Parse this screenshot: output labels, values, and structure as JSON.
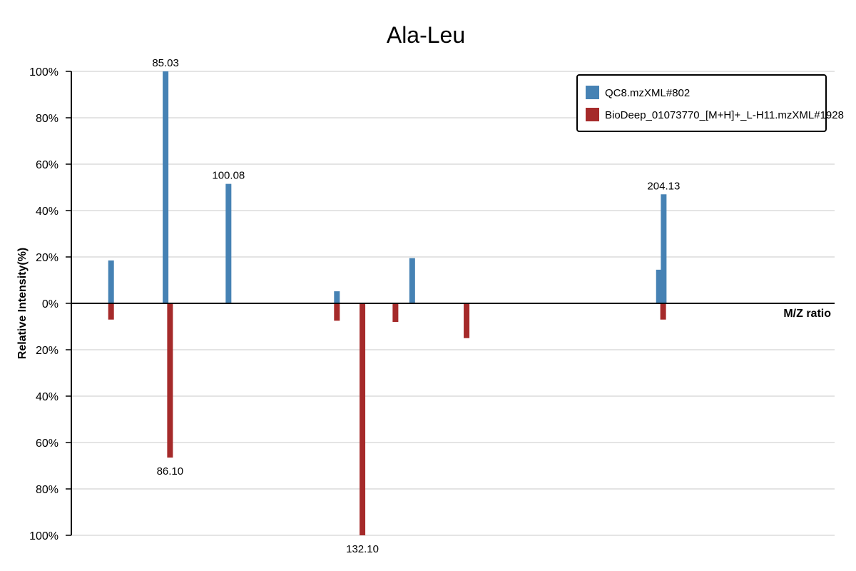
{
  "chart_data": {
    "type": "bar",
    "title": "Ala-Leu",
    "xlabel": "M/Z ratio",
    "ylabel": "Relative Intensity(%)",
    "ylim": [
      -100,
      100
    ],
    "y_ticks": [
      {
        "value": 100,
        "label": "100%"
      },
      {
        "value": 80,
        "label": "80%"
      },
      {
        "value": 60,
        "label": "60%"
      },
      {
        "value": 40,
        "label": "40%"
      },
      {
        "value": 20,
        "label": "20%"
      },
      {
        "value": 0,
        "label": "0%"
      },
      {
        "value": -20,
        "label": "20%"
      },
      {
        "value": -40,
        "label": "40%"
      },
      {
        "value": -60,
        "label": "60%"
      },
      {
        "value": -80,
        "label": "80%"
      },
      {
        "value": -100,
        "label": "100%"
      }
    ],
    "grid": true,
    "legend_position": "top-right",
    "series": [
      {
        "name": "QC8.mzXML#802",
        "color": "#4682b4",
        "direction": "up",
        "points": [
          {
            "mz": 72.0,
            "intensity": 18.5
          },
          {
            "mz": 85.03,
            "intensity": 100,
            "label": "85.03"
          },
          {
            "mz": 100.08,
            "intensity": 51.5,
            "label": "100.08"
          },
          {
            "mz": 126.0,
            "intensity": 5.2
          },
          {
            "mz": 144.0,
            "intensity": 19.5
          },
          {
            "mz": 203.0,
            "intensity": 14.5
          },
          {
            "mz": 204.13,
            "intensity": 47,
            "label": "204.13"
          }
        ]
      },
      {
        "name": "BioDeep_01073770_[M+H]+_L-H11.mzXML#1928",
        "color": "#a52a2a",
        "direction": "down",
        "points": [
          {
            "mz": 72.0,
            "intensity": 7
          },
          {
            "mz": 86.1,
            "intensity": 66.5,
            "label": "86.10"
          },
          {
            "mz": 126.0,
            "intensity": 7.5
          },
          {
            "mz": 132.1,
            "intensity": 100,
            "label": "132.10"
          },
          {
            "mz": 140.0,
            "intensity": 8
          },
          {
            "mz": 157.0,
            "intensity": 15
          },
          {
            "mz": 204.0,
            "intensity": 7
          }
        ]
      }
    ]
  }
}
